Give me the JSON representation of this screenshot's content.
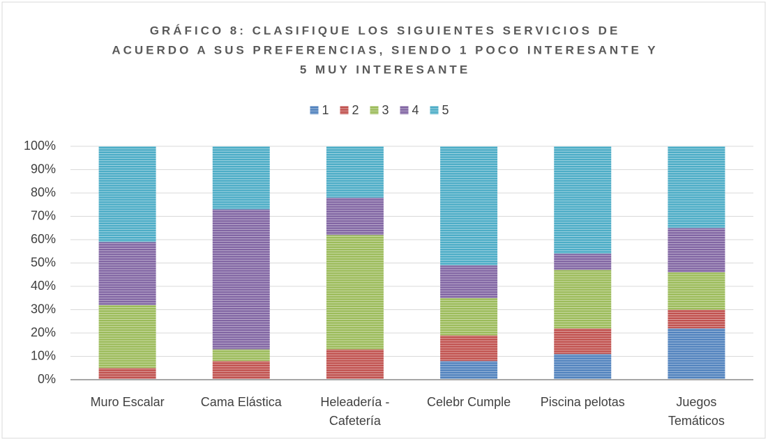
{
  "chart_data": {
    "type": "stacked_bar",
    "title": [
      "GRÁFICO 8: CLASIFIQUE LOS SIGUIENTES SERVICIOS DE",
      "ACUERDO A SUS PREFERENCIAS, SIENDO 1 POCO INTERESANTE Y",
      "5 MUY INTERESANTE"
    ],
    "categories": [
      "Muro Escalar",
      "Cama Elástica",
      "Heleadería - Cafetería",
      "Celebr Cumple",
      "Piscina pelotas",
      "Juegos Temáticos"
    ],
    "series": [
      {
        "name": "1",
        "color": "#4f81bd",
        "values": [
          0,
          0,
          0,
          8,
          11,
          22
        ]
      },
      {
        "name": "2",
        "color": "#c0504d",
        "values": [
          5,
          8,
          13,
          11,
          11,
          8
        ]
      },
      {
        "name": "3",
        "color": "#9bbb59",
        "values": [
          27,
          5,
          49,
          16,
          25,
          16
        ]
      },
      {
        "name": "4",
        "color": "#8064a2",
        "values": [
          27,
          60,
          16,
          14,
          7,
          19
        ]
      },
      {
        "name": "5",
        "color": "#4bacc6",
        "values": [
          41,
          27,
          22,
          51,
          46,
          35
        ]
      }
    ],
    "ylim": [
      0,
      100
    ],
    "yticks": [
      {
        "value": 0,
        "label": "0%"
      },
      {
        "value": 10,
        "label": "10%"
      },
      {
        "value": 20,
        "label": "20%"
      },
      {
        "value": 30,
        "label": "30%"
      },
      {
        "value": 40,
        "label": "40%"
      },
      {
        "value": 50,
        "label": "50%"
      },
      {
        "value": 60,
        "label": "60%"
      },
      {
        "value": 70,
        "label": "70%"
      },
      {
        "value": 80,
        "label": "80%"
      },
      {
        "value": 90,
        "label": "90%"
      },
      {
        "value": 100,
        "label": "100%"
      }
    ],
    "grid": true,
    "legend": "top"
  }
}
